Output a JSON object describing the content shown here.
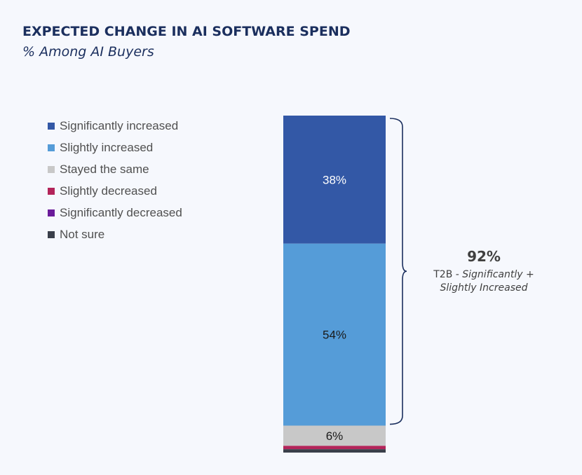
{
  "title": "EXPECTED CHANGE IN AI SOFTWARE SPEND",
  "subtitle": "% Among AI Buyers",
  "chart_data": {
    "type": "bar",
    "stacked": true,
    "title": "EXPECTED CHANGE IN AI SOFTWARE SPEND",
    "subtitle": "% Among AI Buyers",
    "ylim": [
      0,
      100
    ],
    "legend_position": "left",
    "grid": false,
    "series": [
      {
        "name": "Significantly increased",
        "value": 38,
        "label": "38%",
        "color": "#3358a6",
        "label_color": "#ffffff"
      },
      {
        "name": "Slightly increased",
        "value": 54,
        "label": "54%",
        "color": "#559cd8",
        "label_color": "#1a1a1a"
      },
      {
        "name": "Stayed the same",
        "value": 6,
        "label": "6%",
        "color": "#c8c8c8",
        "label_color": "#1a1a1a"
      },
      {
        "name": "Slightly decreased",
        "value": 1,
        "label": "",
        "color": "#b3245a",
        "label_color": "#ffffff"
      },
      {
        "name": "Significantly decreased",
        "value": 0,
        "label": "",
        "color": "#6a1b9a",
        "label_color": "#ffffff"
      },
      {
        "name": "Not sure",
        "value": 1,
        "label": "",
        "color": "#3a3f4a",
        "label_color": "#ffffff"
      }
    ],
    "annotation": {
      "value": "92%",
      "text_prefix": "T2B - ",
      "text_italic_1": "Significantly +",
      "text_italic_2": "Slightly Increased",
      "spans": [
        "Significantly increased",
        "Slightly increased"
      ],
      "color": "#1b2f5e"
    }
  }
}
